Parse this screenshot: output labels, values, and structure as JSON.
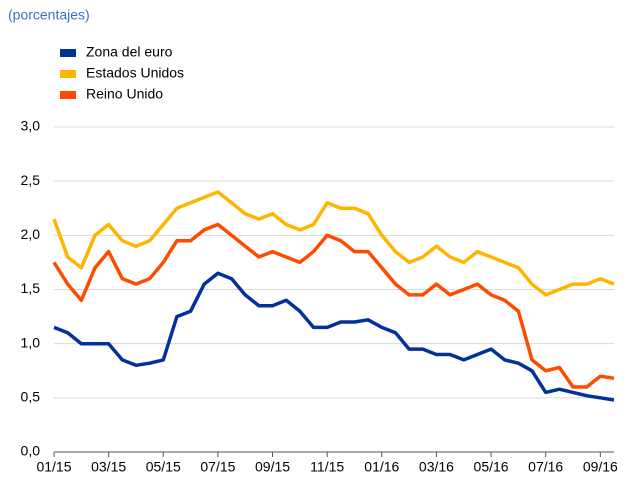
{
  "chart_data": {
    "type": "line",
    "title": "(porcentajes)",
    "categories": [
      "01/15",
      null,
      null,
      null,
      "03/15",
      null,
      null,
      null,
      "05/15",
      null,
      null,
      null,
      "07/15",
      null,
      null,
      null,
      "09/15",
      null,
      null,
      null,
      "11/15",
      null,
      null,
      null,
      "01/16",
      null,
      null,
      null,
      "03/16",
      null,
      null,
      null,
      "05/16",
      null,
      null,
      null,
      "07/16",
      null,
      null,
      null,
      "09/16",
      null
    ],
    "series": [
      {
        "name": "Zona del euro",
        "color": "#003299",
        "values": [
          1.15,
          1.1,
          1.0,
          1.0,
          1.0,
          0.85,
          0.8,
          0.82,
          0.85,
          1.25,
          1.3,
          1.55,
          1.65,
          1.6,
          1.45,
          1.35,
          1.35,
          1.4,
          1.3,
          1.15,
          1.15,
          1.2,
          1.2,
          1.22,
          1.15,
          1.1,
          0.95,
          0.95,
          0.9,
          0.9,
          0.85,
          0.9,
          0.95,
          0.85,
          0.82,
          0.75,
          0.55,
          0.58,
          0.55,
          0.52,
          0.5,
          0.48
        ]
      },
      {
        "name": "Estados Unidos",
        "color": "#ffb400",
        "values": [
          2.15,
          1.8,
          1.7,
          2.0,
          2.1,
          1.95,
          1.9,
          1.95,
          2.1,
          2.25,
          2.3,
          2.35,
          2.4,
          2.3,
          2.2,
          2.15,
          2.2,
          2.1,
          2.05,
          2.1,
          2.3,
          2.25,
          2.25,
          2.2,
          2.0,
          1.85,
          1.75,
          1.8,
          1.9,
          1.8,
          1.75,
          1.85,
          1.8,
          1.75,
          1.7,
          1.55,
          1.45,
          1.5,
          1.55,
          1.55,
          1.6,
          1.55
        ]
      },
      {
        "name": "Reino Unido",
        "color": "#ff4b00",
        "values": [
          1.75,
          1.55,
          1.4,
          1.7,
          1.85,
          1.6,
          1.55,
          1.6,
          1.75,
          1.95,
          1.95,
          2.05,
          2.1,
          2.0,
          1.9,
          1.8,
          1.85,
          1.8,
          1.75,
          1.85,
          2.0,
          1.95,
          1.85,
          1.85,
          1.7,
          1.55,
          1.45,
          1.45,
          1.55,
          1.45,
          1.5,
          1.55,
          1.45,
          1.4,
          1.3,
          0.85,
          0.75,
          0.78,
          0.6,
          0.6,
          0.7,
          0.68
        ]
      }
    ],
    "ylim": [
      0,
      3
    ],
    "yticks": [
      {
        "value": 0,
        "label": "0,0"
      },
      {
        "value": 0.5,
        "label": "0,5"
      },
      {
        "value": 1,
        "label": "1,0"
      },
      {
        "value": 1.5,
        "label": "1,5"
      },
      {
        "value": 2,
        "label": "2,0"
      },
      {
        "value": 2.5,
        "label": "2,5"
      },
      {
        "value": 3,
        "label": "3,0"
      }
    ],
    "grid": true
  }
}
